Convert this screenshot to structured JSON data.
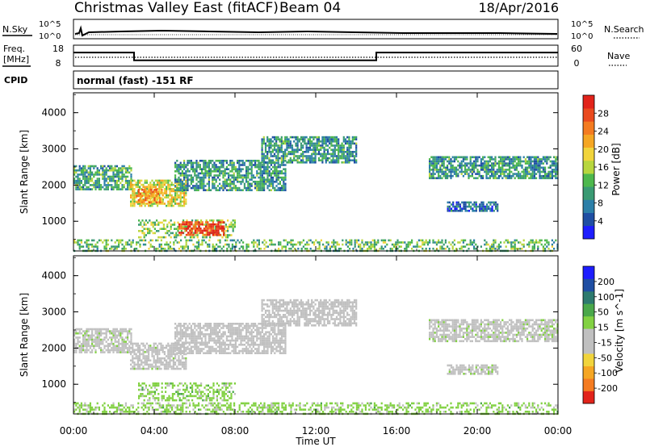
{
  "header": {
    "station": "Christmas Valley East (fitACF)",
    "beam": "Beam 04",
    "date": "18/Apr/2016"
  },
  "noise_panel": {
    "left_label": "N.Sky",
    "right_label": "N.Search",
    "left_ticks": [
      "10^5",
      "10^0"
    ],
    "right_ticks": [
      "10^5",
      "10^0"
    ]
  },
  "freq_panel": {
    "left_label_line1": "Freq.",
    "left_label_line2": "[MHz]",
    "left_ticks": [
      "18",
      "8"
    ],
    "right_label": "Nave",
    "right_ticks": [
      "60",
      "0"
    ],
    "freq_segments_mhz": [
      [
        0,
        3,
        14.5
      ],
      [
        3,
        15,
        10.8
      ],
      [
        15,
        24,
        14.5
      ]
    ],
    "nave_level": 32
  },
  "cpid": {
    "label": "CPID",
    "program": "normal (fast) -151 RF"
  },
  "time_axis": {
    "label": "Time UT",
    "ticks": [
      "00:00",
      "04:00",
      "08:00",
      "12:00",
      "16:00",
      "20:00",
      "00:00"
    ]
  },
  "colors": {
    "power": [
      "#1d1dff",
      "#1f4ea3",
      "#2c7fa8",
      "#3a9a73",
      "#4db84d",
      "#b7d63e",
      "#f1d43c",
      "#f5a623",
      "#f47b20",
      "#ea4a1e",
      "#e2231a"
    ],
    "velocity": [
      "#e2231a",
      "#f47b20",
      "#f5a623",
      "#f1d43c",
      "#c0c0c0",
      "#c0c0c0",
      "#82d142",
      "#4aa84a",
      "#2d7a6e",
      "#1f4ea3",
      "#1d1dff"
    ]
  },
  "chart_data": [
    {
      "type": "heatmap",
      "title": "Power",
      "xlabel": "Time UT",
      "ylabel": "Slant Range [km]",
      "x_range_hours": [
        0,
        24
      ],
      "ylim": [
        180,
        4550
      ],
      "y_ticks": [
        1000,
        2000,
        3000,
        4000
      ],
      "colorbar": {
        "label": "Power [dB]",
        "ticks": [
          "4",
          "8",
          "12",
          "16",
          "20",
          "24",
          "28"
        ],
        "range": [
          0,
          30
        ]
      },
      "echo_regions": [
        {
          "t_start": 0.0,
          "t_end": 2.9,
          "range_low": 1900,
          "range_high": 2550,
          "value": 10
        },
        {
          "t_start": 2.8,
          "t_end": 5.6,
          "range_low": 1450,
          "range_high": 2150,
          "value": 17
        },
        {
          "t_start": 3.1,
          "t_end": 4.4,
          "range_low": 1500,
          "range_high": 1900,
          "value": 22
        },
        {
          "t_start": 5.0,
          "t_end": 10.5,
          "range_low": 1850,
          "range_high": 2700,
          "value": 9
        },
        {
          "t_start": 9.3,
          "t_end": 14.0,
          "range_low": 2600,
          "range_high": 3350,
          "value": 9
        },
        {
          "t_start": 3.2,
          "t_end": 8.0,
          "range_low": 580,
          "range_high": 1050,
          "value": 14
        },
        {
          "t_start": 5.2,
          "t_end": 7.4,
          "range_low": 650,
          "range_high": 1000,
          "value": 27
        },
        {
          "t_start": 17.6,
          "t_end": 24.0,
          "range_low": 2200,
          "range_high": 2800,
          "value": 9
        },
        {
          "t_start": 18.5,
          "t_end": 21.0,
          "range_low": 1300,
          "range_high": 1550,
          "value": 6
        },
        {
          "t_start": 0.0,
          "t_end": 24.0,
          "range_low": 180,
          "range_high": 500,
          "value": 12
        }
      ]
    },
    {
      "type": "heatmap",
      "title": "Velocity",
      "xlabel": "Time UT",
      "ylabel": "Slant Range [km]",
      "x_range_hours": [
        0,
        24
      ],
      "ylim": [
        180,
        4550
      ],
      "y_ticks": [
        1000,
        2000,
        3000,
        4000
      ],
      "colorbar": {
        "label": "Velocity [m s^-1]",
        "ticks": [
          "-200",
          "-100",
          "-50",
          "-15",
          "15",
          "50",
          "100",
          "200"
        ],
        "range": [
          -250,
          250
        ]
      },
      "echo_regions": [
        {
          "t_start": 0.0,
          "t_end": 2.9,
          "range_low": 1900,
          "range_high": 2550,
          "value": 0
        },
        {
          "t_start": 2.8,
          "t_end": 5.6,
          "range_low": 1450,
          "range_high": 2150,
          "value": -5
        },
        {
          "t_start": 5.0,
          "t_end": 10.5,
          "range_low": 1850,
          "range_high": 2700,
          "value": -30
        },
        {
          "t_start": 9.3,
          "t_end": 14.0,
          "range_low": 2600,
          "range_high": 3350,
          "value": -20
        },
        {
          "t_start": 3.2,
          "t_end": 8.0,
          "range_low": 580,
          "range_high": 1050,
          "value": 45
        },
        {
          "t_start": 17.6,
          "t_end": 24.0,
          "range_low": 2200,
          "range_high": 2800,
          "value": 0
        },
        {
          "t_start": 18.5,
          "t_end": 21.0,
          "range_low": 1300,
          "range_high": 1550,
          "value": 0
        },
        {
          "t_start": 0.0,
          "t_end": 24.0,
          "range_low": 180,
          "range_high": 500,
          "value": 40
        }
      ]
    }
  ]
}
